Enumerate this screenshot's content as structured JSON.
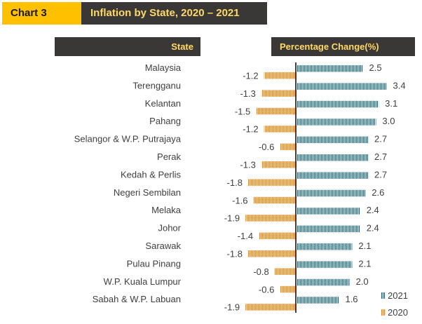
{
  "header": {
    "tag": "Chart 3",
    "title": "Inflation by State, 2020 – 2021"
  },
  "column_headers": {
    "state": "State",
    "change": "Percentage Change(%)"
  },
  "colors": {
    "series_2021": "#1f4e79",
    "series_2020": "#ed7d31",
    "header_bg": "#3a3836",
    "header_text": "#ffd966",
    "tag_bg": "#ffc000"
  },
  "chart_data": {
    "type": "bar",
    "orientation": "horizontal",
    "title": "Inflation by State, 2020 – 2021",
    "xlabel": "Percentage Change(%)",
    "ylabel": "State",
    "categories": [
      "Malaysia",
      "Terengganu",
      "Kelantan",
      "Pahang",
      "Selangor & W.P. Putrajaya",
      "Perak",
      "Kedah & Perlis",
      "Negeri Sembilan",
      "Melaka",
      "Johor",
      "Sarawak",
      "Pulau Pinang",
      "W.P. Kuala Lumpur",
      "Sabah & W.P. Labuan"
    ],
    "series": [
      {
        "name": "2021",
        "values": [
          2.5,
          3.4,
          3.1,
          3.0,
          2.7,
          2.7,
          2.7,
          2.6,
          2.4,
          2.4,
          2.1,
          2.1,
          2.0,
          1.6
        ]
      },
      {
        "name": "2020",
        "values": [
          -1.2,
          -1.3,
          -1.5,
          -1.2,
          -0.6,
          -1.3,
          -1.8,
          -1.6,
          -1.9,
          -1.4,
          -1.8,
          -0.8,
          -0.6,
          -1.9
        ]
      }
    ],
    "value_labels": {
      "2021": [
        "2.5",
        "3.4",
        "3.1",
        "3.0",
        "2.7",
        "2.7",
        "2.7",
        "2.6",
        "2.4",
        "2.4",
        "2.1",
        "2.1",
        "2.0",
        "1.6"
      ],
      "2020": [
        "-1.2",
        "-1.3",
        "-1.5",
        "-1.2",
        "-0.6",
        "-1.3",
        "-1.8",
        "-1.6",
        "-1.9",
        "-1.4",
        "-1.8",
        "-0.8",
        "-0.6",
        "-1.9"
      ]
    },
    "legend": {
      "position": "bottom-right",
      "entries": [
        "2021",
        "2020"
      ]
    },
    "grid": false
  }
}
